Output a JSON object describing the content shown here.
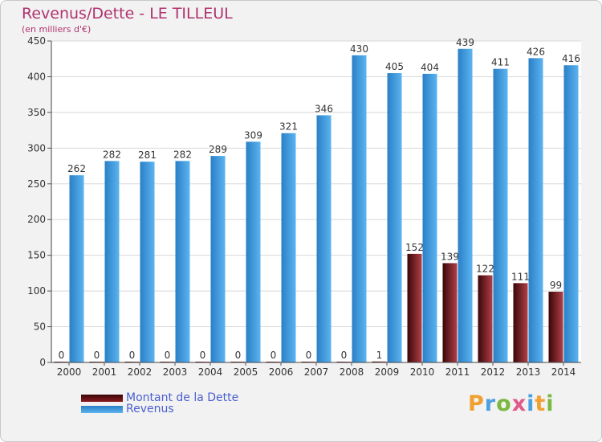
{
  "title": "Revenus/Dette - LE TILLEUL",
  "subtitle": "(en milliers d'€)",
  "logo": {
    "letters": [
      "P",
      "r",
      "o",
      "x",
      "i",
      "t",
      "i"
    ],
    "colors": [
      "#f0a030",
      "#4aa0e0",
      "#7ab840",
      "#e05a8a",
      "#4aa0e0",
      "#f0a030",
      "#7ab840"
    ]
  },
  "chart_data": {
    "type": "bar",
    "title": "Revenus/Dette - LE TILLEUL",
    "ylabel": "(en milliers d'€)",
    "xlabel": "",
    "ylim": [
      0,
      450
    ],
    "yticks": [
      0,
      50,
      100,
      150,
      200,
      250,
      300,
      350,
      400,
      450
    ],
    "grid": true,
    "legend_position": "bottom-left",
    "categories": [
      "2000",
      "2001",
      "2002",
      "2003",
      "2004",
      "2005",
      "2006",
      "2007",
      "2008",
      "2009",
      "2010",
      "2011",
      "2012",
      "2013",
      "2014"
    ],
    "series": [
      {
        "name": "Montant de la Dette",
        "color": "#7a0f14",
        "values": [
          0,
          0,
          0,
          0,
          0,
          0,
          0,
          0,
          0,
          1,
          152,
          139,
          122,
          111,
          99
        ],
        "labels": [
          "0",
          "0",
          "0",
          "0",
          "0",
          "0",
          "0",
          "0",
          "0",
          "1",
          "152",
          "139",
          "122",
          "111",
          "99"
        ]
      },
      {
        "name": "Revenus",
        "color": "#4aa3e6",
        "values": [
          262,
          282,
          281,
          282,
          289,
          309,
          321,
          346,
          430,
          405,
          404,
          439,
          411,
          426,
          416
        ],
        "labels": [
          "262",
          "282",
          "281",
          "282",
          "289",
          "309",
          "321",
          "346",
          "430",
          "405",
          "404",
          "439",
          "411",
          "426",
          "416"
        ]
      }
    ]
  }
}
